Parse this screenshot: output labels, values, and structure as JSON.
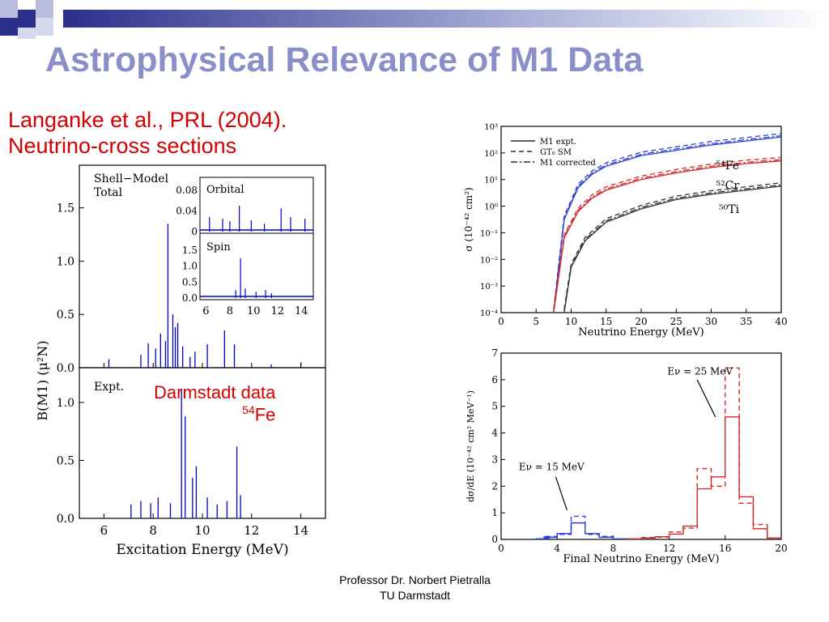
{
  "slide": {
    "title": "Astrophysical Relevance of M1 Data",
    "subtitle_line1": "Langanke et al., PRL (2004).",
    "subtitle_line2": "Neutrino-cross sections",
    "annotation_line1": "Darmstadt data",
    "annotation_mass": "54",
    "annotation_element": "Fe",
    "footer_line1": "Professor Dr. Norbert Pietralla",
    "footer_line2": "TU Darmstadt"
  },
  "left_figure": {
    "ylabel": "B(M1) (μ²N)",
    "xlabel": "Excitation Energy (MeV)",
    "top_label_1": "Shell−Model",
    "top_label_2": "Total",
    "bottom_label": "Expt.",
    "inset_orbital": "Orbital",
    "inset_spin": "Spin",
    "color": "#0000cc"
  },
  "chart_data": [
    {
      "type": "bar",
      "title": "Shell−Model Total",
      "xlabel": "Excitation Energy (MeV)",
      "ylabel": "B(M1) (μ²N)",
      "xlim": [
        5,
        15
      ],
      "ylim": [
        0,
        1.9
      ],
      "x_ticks": [
        "6",
        "8",
        "10",
        "12",
        "14"
      ],
      "y_ticks": [
        "0.0",
        "0.5",
        "1.0",
        "1.5"
      ],
      "x": [
        6.2,
        7.5,
        7.8,
        8.1,
        8.3,
        8.5,
        8.6,
        8.8,
        8.9,
        9.0,
        9.2,
        9.5,
        9.7,
        10.2,
        10.9,
        11.3,
        12.8,
        14.0
      ],
      "values": [
        0.08,
        0.12,
        0.23,
        0.18,
        0.32,
        0.25,
        1.35,
        0.5,
        0.38,
        0.42,
        0.2,
        0.1,
        0.15,
        0.22,
        0.35,
        0.22,
        0.03,
        0.05
      ]
    },
    {
      "type": "bar",
      "title": "Orbital",
      "xlim": [
        5.5,
        15
      ],
      "ylim": [
        0,
        0.1
      ],
      "x_ticks": [],
      "y_ticks": [
        "0",
        "0.04",
        "0.08"
      ],
      "x": [
        6.3,
        7.4,
        8.0,
        8.8,
        9.8,
        10.9,
        12.3,
        13.1,
        14.3
      ],
      "values": [
        0.028,
        0.025,
        0.02,
        0.05,
        0.022,
        0.015,
        0.045,
        0.028,
        0.025
      ]
    },
    {
      "type": "bar",
      "title": "Spin",
      "xlim": [
        5.5,
        15
      ],
      "ylim": [
        0,
        1.9
      ],
      "x_ticks": [
        "6",
        "8",
        "10",
        "12",
        "14"
      ],
      "y_ticks": [
        "0.0",
        "0.5",
        "1.0",
        "1.5"
      ],
      "x": [
        8.5,
        8.9,
        9.3,
        10.2,
        11.0,
        11.5
      ],
      "values": [
        0.25,
        1.25,
        0.3,
        0.2,
        0.25,
        0.15
      ]
    },
    {
      "type": "bar",
      "title": "Expt.",
      "xlabel": "Excitation Energy (MeV)",
      "ylabel": "B(M1) (μ²N)",
      "xlim": [
        5,
        15
      ],
      "ylim": [
        0,
        1.3
      ],
      "x_ticks": [
        "6",
        "8",
        "10",
        "12",
        "14"
      ],
      "y_ticks": [
        "0.0",
        "0.5",
        "1.0"
      ],
      "x": [
        7.1,
        7.5,
        7.9,
        8.2,
        8.7,
        9.15,
        9.3,
        9.6,
        9.75,
        10.2,
        10.6,
        11.0,
        11.4,
        11.55
      ],
      "values": [
        0.12,
        0.15,
        0.13,
        0.18,
        0.13,
        1.12,
        0.88,
        0.35,
        0.45,
        0.18,
        0.12,
        0.15,
        0.62,
        0.2
      ]
    },
    {
      "type": "line",
      "xlabel": "Neutrino Energy (MeV)",
      "ylabel": "σ (10⁻⁴² cm²)",
      "xlim": [
        0,
        40
      ],
      "ylim_log10": [
        -4,
        3
      ],
      "y_scale": "log",
      "x_ticks": [
        "0",
        "5",
        "10",
        "15",
        "20",
        "25",
        "30",
        "35",
        "40"
      ],
      "y_ticks": [
        "10⁻⁴",
        "10⁻³",
        "10⁻²",
        "10⁻¹",
        "10⁰",
        "10¹",
        "10²",
        "10³"
      ],
      "legend": [
        "M1 expt.",
        "GT₀ SM",
        "M1 corrected"
      ],
      "legend_position": "top-left",
      "series": [
        {
          "name": "⁵⁴Fe",
          "x": [
            7.5,
            9,
            11,
            13,
            15,
            20,
            25,
            30,
            35,
            40
          ],
          "log10_y": [
            -4,
            -0.5,
            0.7,
            1.2,
            1.5,
            1.9,
            2.1,
            2.3,
            2.45,
            2.6
          ],
          "color": "#2a3fd0"
        },
        {
          "name": "⁵²Cr",
          "x": [
            7.5,
            9,
            11,
            13,
            15,
            20,
            25,
            30,
            35,
            40
          ],
          "log10_y": [
            -4,
            -1.2,
            -0.2,
            0.3,
            0.6,
            1.0,
            1.25,
            1.45,
            1.6,
            1.7
          ],
          "color": "#d02a2a"
        },
        {
          "name": "⁵⁰Ti",
          "x": [
            9,
            10,
            12,
            15,
            20,
            25,
            30,
            35,
            40
          ],
          "log10_y": [
            -4,
            -2.3,
            -1.3,
            -0.6,
            -0.1,
            0.25,
            0.45,
            0.6,
            0.75
          ],
          "color": "#333333"
        }
      ]
    },
    {
      "type": "line",
      "xlabel": "Final Neutrino Energy (MeV)",
      "ylabel": "dσ/dE (10⁻⁴² cm² MeV⁻¹)",
      "xlim": [
        0,
        20
      ],
      "ylim": [
        0,
        7
      ],
      "x_ticks": [
        "0",
        "4",
        "8",
        "12",
        "16",
        "20"
      ],
      "y_ticks": [
        "0",
        "1",
        "2",
        "3",
        "4",
        "5",
        "6",
        "7"
      ],
      "annotations": [
        "Eν = 25 MeV",
        "Eν = 15 MeV"
      ],
      "series": [
        {
          "name": "Eν = 15 MeV",
          "x": [
            2.5,
            3,
            4,
            5,
            6,
            7,
            8
          ],
          "values": [
            0.02,
            0.08,
            0.22,
            0.62,
            0.22,
            0.08,
            0.02
          ],
          "color": "#2a3fd0"
        },
        {
          "name": "Eν = 25 MeV",
          "x": [
            9,
            10,
            11,
            12,
            13,
            14,
            15,
            16,
            17,
            18,
            19
          ],
          "values": [
            0.02,
            0.05,
            0.1,
            0.2,
            0.5,
            1.9,
            2.35,
            4.6,
            1.6,
            0.4,
            0.05
          ],
          "color": "#d02a2a"
        }
      ]
    }
  ]
}
